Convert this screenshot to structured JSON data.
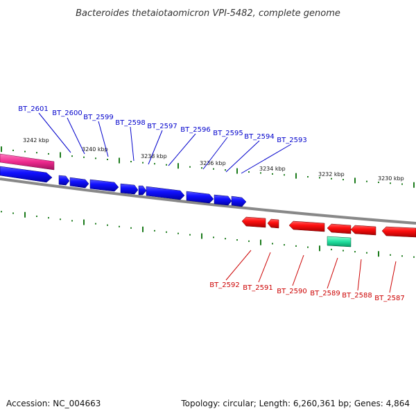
{
  "title": "Bacteroides thetaiotaomicron VPI-5482, complete genome",
  "footer": {
    "accession": "Accession: NC_004663",
    "summary": "Topology: circular; Length: 6,260,361 bp; Genes: 4,864"
  },
  "colors": {
    "forward_gene": "#0a0af0",
    "reverse_gene": "#ee1111",
    "highlight_forward": "#e8238f",
    "highlight_reverse": "#22e0a0",
    "tick": "#1a7a1a",
    "backbone": "#888888",
    "forward_label": "#0000cc",
    "reverse_label": "#cc0000"
  },
  "kbp_labels": [
    "3242 kbp",
    "3240 kbp",
    "3238 kbp",
    "3236 kbp",
    "3234 kbp",
    "3232 kbp",
    "3230 kbp"
  ],
  "forward_labels": [
    "BT_2601",
    "BT_2600",
    "BT_2599",
    "BT_2598",
    "BT_2597",
    "BT_2596",
    "BT_2595",
    "BT_2594",
    "BT_2593"
  ],
  "reverse_labels": [
    "BT_2592",
    "BT_2591",
    "BT_2590",
    "BT_2589",
    "BT_2588",
    "BT_2587"
  ]
}
